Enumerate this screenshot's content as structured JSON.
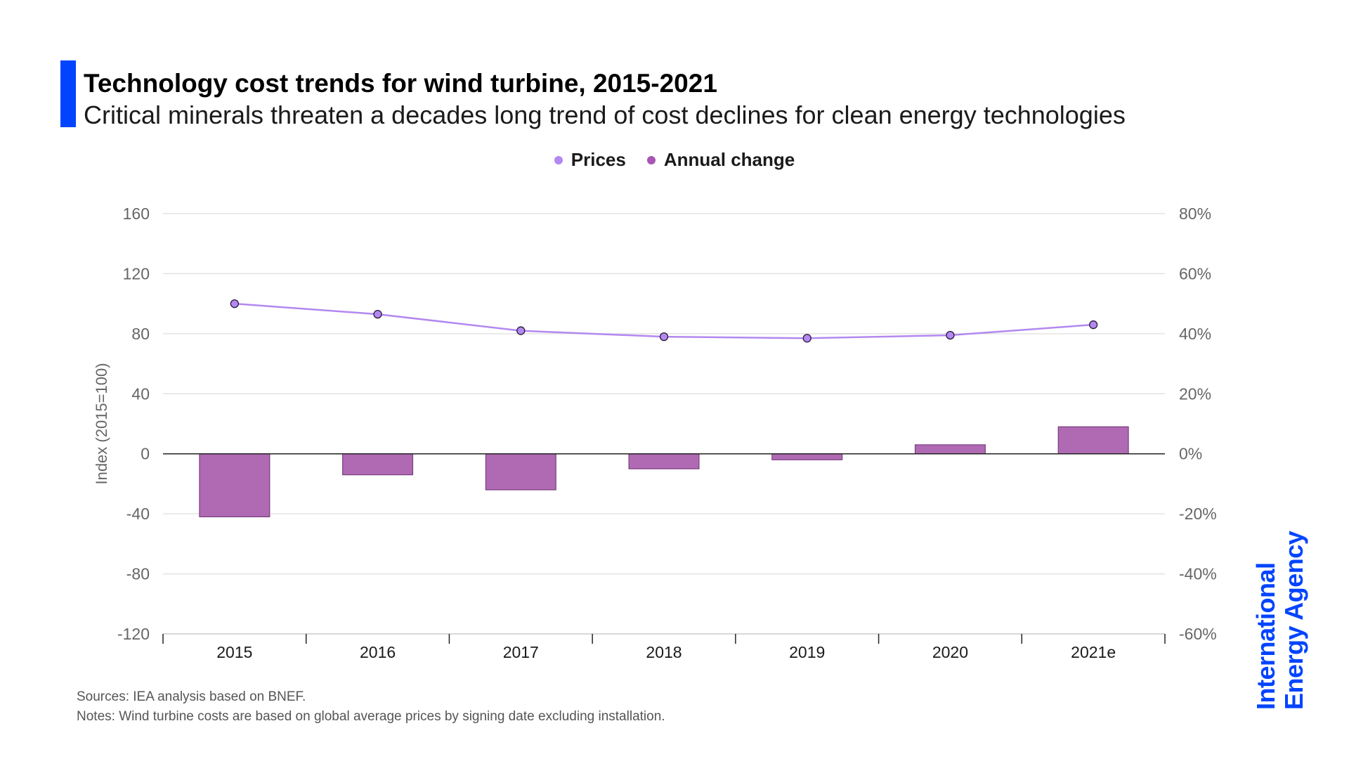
{
  "header": {
    "title": "Technology cost trends for wind turbine, 2015-2021",
    "subtitle": "Critical minerals threaten a decades long trend of cost declines for clean energy technologies"
  },
  "legend": {
    "items": [
      {
        "label": "Prices",
        "color": "#b388f0"
      },
      {
        "label": "Annual change",
        "color": "#a855b5"
      }
    ]
  },
  "chart_data": {
    "type": "bar",
    "categories": [
      "2015",
      "2016",
      "2017",
      "2018",
      "2019",
      "2020",
      "2021e"
    ],
    "series": [
      {
        "name": "Prices",
        "type": "line",
        "axis": "left",
        "color": "#b388f0",
        "values": [
          100,
          93,
          82,
          78,
          77,
          79,
          86
        ]
      },
      {
        "name": "Annual change",
        "type": "bar",
        "axis": "right",
        "color": "#b06ab3",
        "values": [
          -21,
          -7,
          -12,
          -5,
          -2,
          3,
          9
        ]
      }
    ],
    "ylabel": "Index (2015=100)",
    "ylim": [
      -120,
      160
    ],
    "yticks": [
      "160",
      "120",
      "80",
      "40",
      "0",
      "-40",
      "-80",
      "-120"
    ],
    "ytick_values": [
      160,
      120,
      80,
      40,
      0,
      -40,
      -80,
      -120
    ],
    "y2lim": [
      -60,
      80
    ],
    "y2ticks": [
      "80%",
      "60%",
      "40%",
      "20%",
      "0%",
      "-20%",
      "-40%",
      "-60%"
    ],
    "y2tick_values": [
      80,
      60,
      40,
      20,
      0,
      -20,
      -40,
      -60
    ],
    "grid": true
  },
  "footer": {
    "sources": "Sources: IEA analysis based on BNEF.",
    "notes": "Notes: Wind turbine costs are based on global average prices by signing date excluding installation."
  },
  "logo": {
    "line1": "International",
    "line2": "Energy Agency"
  }
}
